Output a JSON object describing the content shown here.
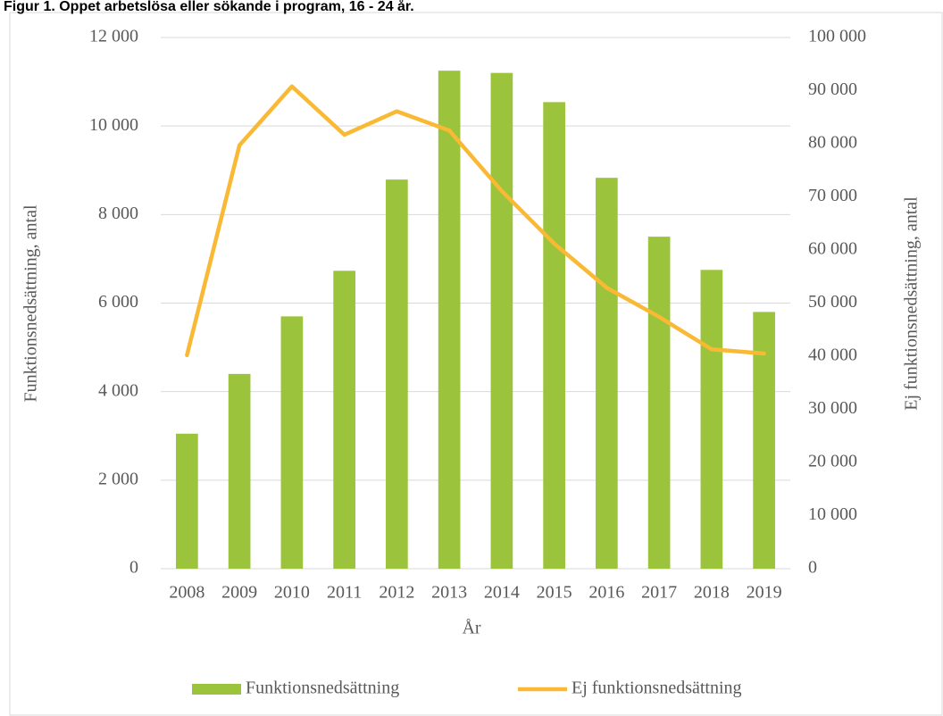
{
  "chart_data": {
    "type": "bar_line",
    "title": "Figur 1. Öppet arbetslösa eller sökande i program, 16 - 24 år.",
    "x_label": "År",
    "y_label": "Funktionsnedsättning, antal",
    "y2_label": "Ej funktionsnedsättning, antal",
    "categories": [
      "2008",
      "2009",
      "2010",
      "2011",
      "2012",
      "2013",
      "2014",
      "2015",
      "2016",
      "2017",
      "2018",
      "2019"
    ],
    "series": [
      {
        "name": "Funktionsnedsättning",
        "type": "bar",
        "color": "#9bc33b",
        "axis": "y",
        "values": [
          3050,
          4400,
          5700,
          6730,
          8790,
          11250,
          11200,
          10540,
          8830,
          7500,
          6750,
          5800
        ]
      },
      {
        "name": "Ej funktionsnedsättning",
        "type": "line",
        "color": "#f9b934",
        "axis": "y2",
        "values": [
          40200,
          79700,
          90800,
          81700,
          86100,
          82500,
          71100,
          61200,
          52900,
          47400,
          41300,
          40500
        ]
      }
    ],
    "ylim": [
      0,
      12000
    ],
    "yticks": [
      0,
      {
        "value": 2000,
        "label": "2 000"
      },
      {
        "value": 4000,
        "label": "4 000"
      },
      {
        "value": 6000,
        "label": "6 000"
      },
      {
        "value": 8000,
        "label": "8 000"
      },
      {
        "value": 10000,
        "label": "10 000"
      },
      {
        "value": 12000,
        "label": "12 000"
      }
    ],
    "y2lim": [
      0,
      100000
    ],
    "y2ticks": [
      0,
      {
        "value": 10000,
        "label": "10 000"
      },
      {
        "value": 20000,
        "label": "20 000"
      },
      {
        "value": 30000,
        "label": "30 000"
      },
      {
        "value": 40000,
        "label": "40 000"
      },
      {
        "value": 50000,
        "label": "50 000"
      },
      {
        "value": 60000,
        "label": "60 000"
      },
      {
        "value": 70000,
        "label": "70 000"
      },
      {
        "value": 80000,
        "label": "80 000"
      },
      {
        "value": 90000,
        "label": "90 000"
      },
      {
        "value": 100000,
        "label": "100 000"
      }
    ],
    "grid": true,
    "legend": "bottom"
  }
}
